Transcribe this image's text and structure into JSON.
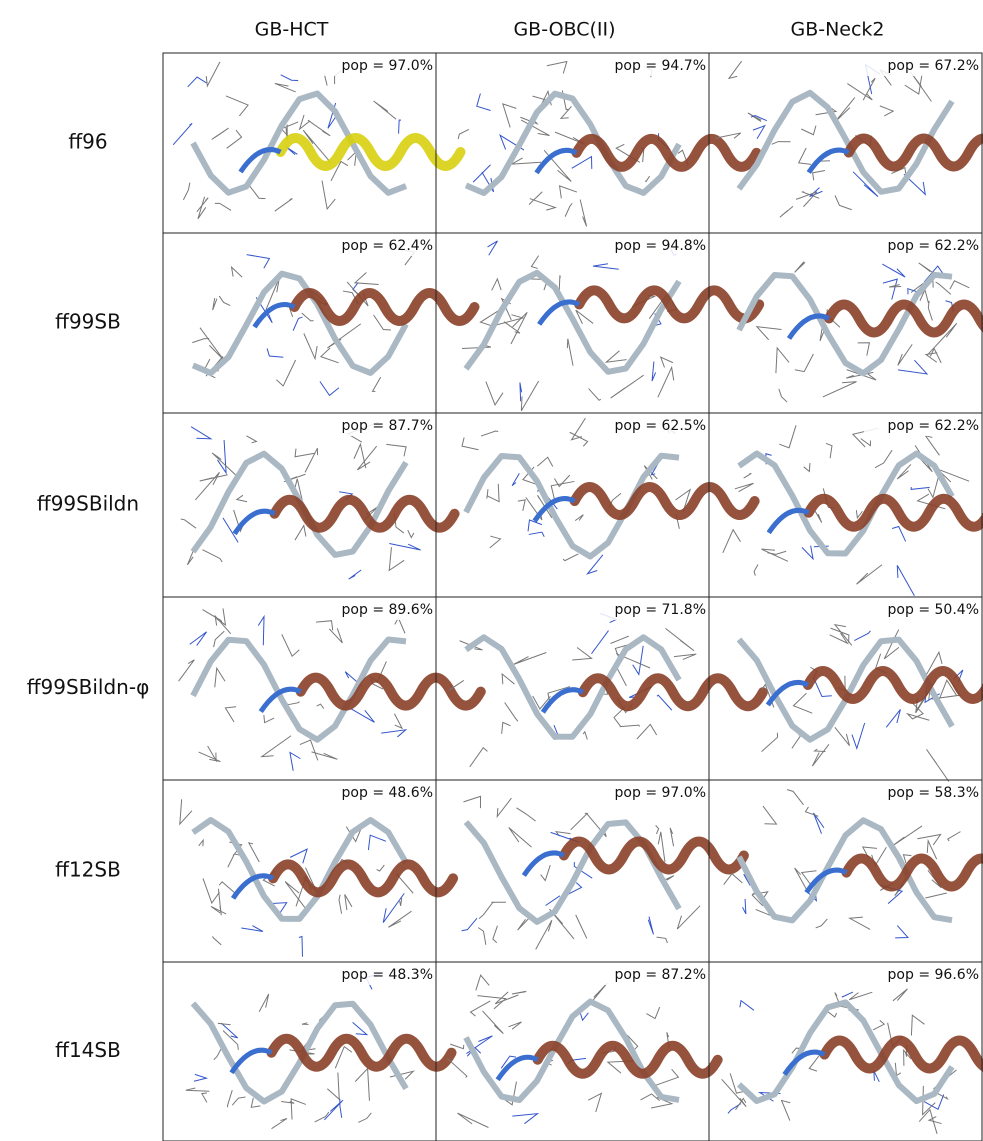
{
  "columns": [
    "GB-HCT",
    "GB-OBC(II)",
    "GB-Neck2"
  ],
  "rows": [
    {
      "label": "ff96",
      "cells": [
        "pop = 97.0%",
        "pop = 94.7%",
        "pop = 67.2%"
      ]
    },
    {
      "label": "ff99SB",
      "cells": [
        "pop = 62.4%",
        "pop = 94.8%",
        "pop = 62.2%"
      ]
    },
    {
      "label": "ff99SBildn",
      "cells": [
        "pop = 87.7%",
        "pop = 62.5%",
        "pop = 62.2%"
      ]
    },
    {
      "label": "ff99SBildn-φ",
      "cells": [
        "pop = 89.6%",
        "pop = 71.8%",
        "pop = 50.4%"
      ]
    },
    {
      "label": "ff12SB",
      "cells": [
        "pop = 48.6%",
        "pop = 97.0%",
        "pop = 58.3%"
      ]
    },
    {
      "label": "ff14SB",
      "cells": [
        "pop = 48.3%",
        "pop = 87.2%",
        "pop = 96.6%"
      ]
    }
  ]
}
